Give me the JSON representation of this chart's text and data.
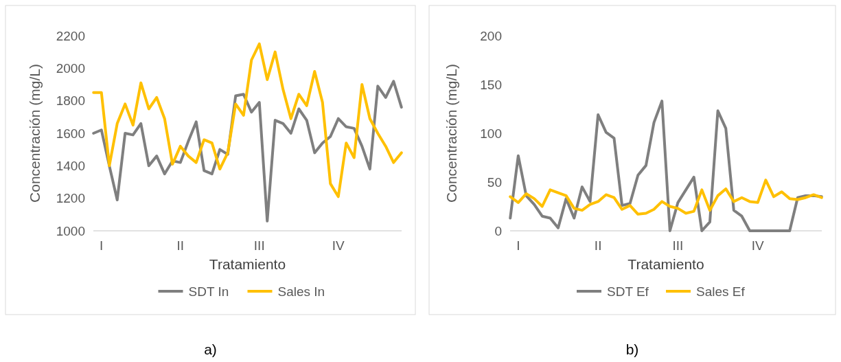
{
  "chart_data": [
    {
      "type": "line",
      "xlabel": "Tratamiento",
      "ylabel": "Concentración (mg/L)",
      "annotations": [
        "a)"
      ],
      "categories": [
        null,
        "I",
        null,
        null,
        null,
        null,
        null,
        null,
        null,
        null,
        null,
        "II",
        null,
        null,
        null,
        null,
        null,
        null,
        null,
        null,
        null,
        "III",
        null,
        null,
        null,
        null,
        null,
        null,
        null,
        null,
        null,
        "IV",
        null,
        null,
        null,
        null,
        null,
        null,
        null,
        null
      ],
      "ylim": [
        1000,
        2200
      ],
      "yticks": [
        1000,
        1200,
        1400,
        1600,
        1800,
        2000,
        2200
      ],
      "grid": false,
      "legend": "bottom",
      "line_style": "solid",
      "series": [
        {
          "name": "SDT In",
          "color": "#7f7f7f",
          "values": [
            1600,
            1620,
            1400,
            1190,
            1600,
            1590,
            1660,
            1400,
            1460,
            1350,
            1430,
            1420,
            1550,
            1670,
            1370,
            1350,
            1500,
            1470,
            1830,
            1840,
            1730,
            1790,
            1060,
            1680,
            1660,
            1600,
            1750,
            1680,
            1480,
            1540,
            1580,
            1690,
            1640,
            1630,
            1520,
            1380,
            1890,
            1820,
            1920,
            1760
          ]
        },
        {
          "name": "Sales In",
          "color": "#ffc000",
          "values": [
            1850,
            1850,
            1400,
            1660,
            1780,
            1650,
            1910,
            1750,
            1820,
            1690,
            1410,
            1520,
            1460,
            1420,
            1560,
            1540,
            1380,
            1480,
            1780,
            1710,
            2050,
            2150,
            1930,
            2100,
            1870,
            1690,
            1840,
            1770,
            1980,
            1790,
            1290,
            1210,
            1540,
            1450,
            1900,
            1690,
            1600,
            1520,
            1420,
            1480
          ]
        }
      ]
    },
    {
      "type": "line",
      "xlabel": "Tratamiento",
      "ylabel": "Concentración (mg/L)",
      "annotations": [
        "b)"
      ],
      "categories": [
        null,
        "I",
        null,
        null,
        null,
        null,
        null,
        null,
        null,
        null,
        null,
        "II",
        null,
        null,
        null,
        null,
        null,
        null,
        null,
        null,
        null,
        "III",
        null,
        null,
        null,
        null,
        null,
        null,
        null,
        null,
        null,
        "IV",
        null,
        null,
        null,
        null,
        null,
        null,
        null,
        null
      ],
      "ylim": [
        0,
        200
      ],
      "yticks": [
        0,
        50,
        100,
        150,
        200
      ],
      "grid": false,
      "legend": "bottom",
      "line_style": "solid",
      "series": [
        {
          "name": "SDT Ef",
          "color": "#7f7f7f",
          "values": [
            13,
            77,
            36,
            27,
            15,
            13,
            3,
            33,
            13,
            45,
            30,
            119,
            101,
            95,
            26,
            28,
            57,
            67,
            111,
            133,
            0,
            29,
            42,
            55,
            0,
            9,
            123,
            105,
            21,
            15,
            0,
            0,
            0,
            0,
            0,
            0,
            34,
            36,
            36,
            35
          ]
        },
        {
          "name": "Sales Ef",
          "color": "#ffc000",
          "values": [
            35,
            29,
            38,
            33,
            25,
            42,
            39,
            36,
            23,
            21,
            27,
            30,
            37,
            34,
            22,
            26,
            17,
            18,
            22,
            30,
            25,
            23,
            18,
            20,
            42,
            21,
            36,
            43,
            30,
            34,
            30,
            29,
            52,
            35,
            40,
            33,
            32,
            34,
            37,
            34
          ]
        }
      ]
    }
  ]
}
